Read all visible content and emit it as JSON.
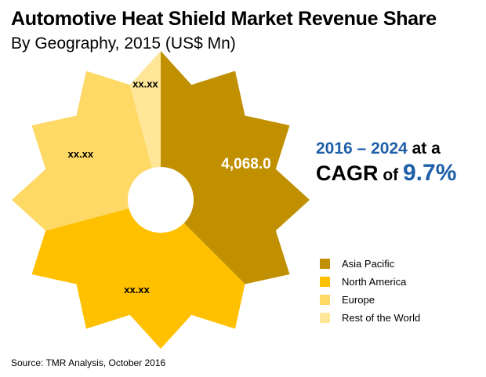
{
  "title": "Automotive Heat Shield Market Revenue Share",
  "subtitle": "By Geography, 2015 (US$ Mn)",
  "cagr": {
    "period": "2016 – 2024",
    "at_a": " at a",
    "cagr_label": "CAGR",
    "of": " of ",
    "value": "9.7%"
  },
  "source": "Source: TMR Analysis, October 2016",
  "chart_data": {
    "type": "pie",
    "variant": "starburst-donut",
    "start": "12 o'clock, clockwise",
    "slices": [
      {
        "name": "Asia Pacific",
        "label": "4,068.0",
        "share_deg": 135,
        "color": "#c09000"
      },
      {
        "name": "North America",
        "label": "xx.xx",
        "share_deg": 120,
        "color": "#ffc000"
      },
      {
        "name": "Europe",
        "label": "xx.xx",
        "share_deg": 90,
        "color": "#ffd966"
      },
      {
        "name": "Rest of the World",
        "label": "xx.xx",
        "share_deg": 15,
        "color": "#ffe699"
      }
    ],
    "legend": [
      "Asia Pacific",
      "North America",
      "Europe",
      "Rest of the World"
    ],
    "legend_position": "right"
  }
}
